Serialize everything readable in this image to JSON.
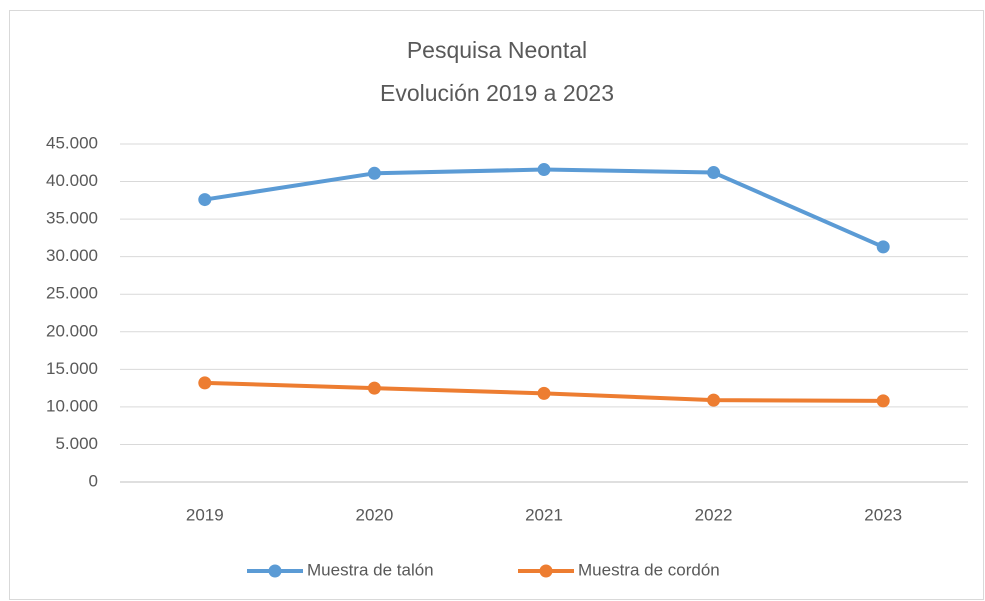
{
  "chart_data": {
    "type": "line",
    "title": "Pesquisa Neontal",
    "subtitle": "Evolución 2019 a 2023",
    "categories": [
      "2019",
      "2020",
      "2021",
      "2022",
      "2023"
    ],
    "series": [
      {
        "name": "Muestra de talón",
        "color": "#5b9bd5",
        "values": [
          37600,
          41100,
          41600,
          41200,
          31300
        ]
      },
      {
        "name": "Muestra de cordón",
        "color": "#ed7d31",
        "values": [
          13200,
          12500,
          11800,
          10900,
          10800
        ]
      }
    ],
    "ylim": [
      0,
      45000
    ],
    "yticks": [
      0,
      {
        "value": 5000,
        "label": "5.000"
      },
      {
        "value": 10000,
        "label": "10.000"
      },
      {
        "value": 15000,
        "label": "15.000"
      },
      {
        "value": 20000,
        "label": "20.000"
      },
      {
        "value": 25000,
        "label": "25.000"
      },
      {
        "value": 30000,
        "label": "30.000"
      },
      {
        "value": 35000,
        "label": "35.000"
      },
      {
        "value": 40000,
        "label": "40.000"
      },
      {
        "value": 45000,
        "label": "45.000"
      }
    ],
    "grid": true,
    "legend": "bottom"
  }
}
